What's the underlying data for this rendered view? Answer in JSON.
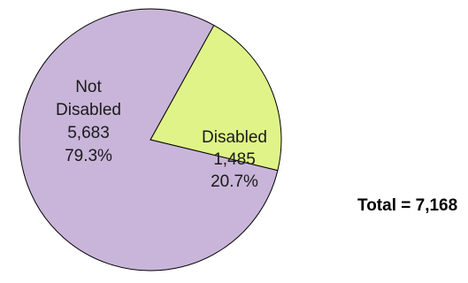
{
  "chart_data": {
    "type": "pie",
    "slices": [
      {
        "name": "Disabled",
        "label_lines": [
          "Disabled",
          "1,485",
          "20.7%"
        ],
        "value": 1485,
        "percent": 20.7,
        "color": "#e0f388"
      },
      {
        "name": "Not Disabled",
        "label_lines": [
          "Not",
          "Disabled",
          "5,683",
          "79.3%"
        ],
        "value": 5683,
        "percent": 79.3,
        "color": "#c9b5d9"
      }
    ],
    "total_text": "Total = 7,168",
    "total": 7168,
    "stroke_color": "#000000"
  }
}
